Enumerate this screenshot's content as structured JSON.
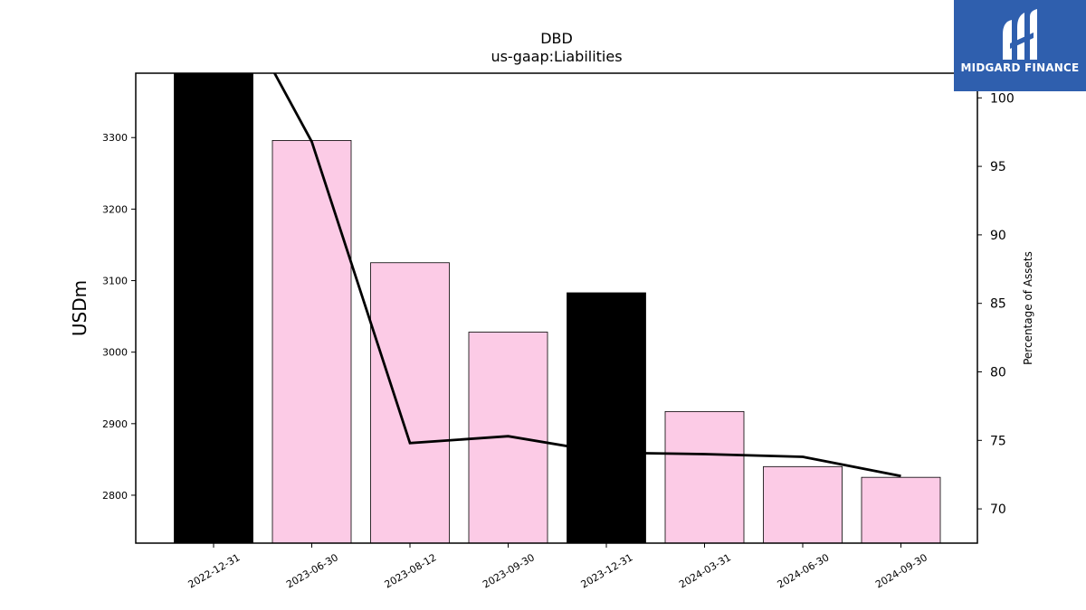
{
  "chart_data": {
    "type": "bar",
    "title": "DBD",
    "subtitle": "us-gaap:Liabilities",
    "ylabel": "USDm",
    "y2label": "Percentage of Assets",
    "categories": [
      "2022-12-31",
      "2023-06-30",
      "2023-08-12",
      "2023-09-30",
      "2023-12-31",
      "2024-03-31",
      "2024-06-30",
      "2024-09-30"
    ],
    "values": [
      3390,
      3296,
      3125,
      3028,
      3083,
      2917,
      2840,
      2825
    ],
    "bar_colors": [
      "#000000",
      "#fccbe6",
      "#fccbe6",
      "#fccbe6",
      "#000000",
      "#fccbe6",
      "#fccbe6",
      "#fccbe6"
    ],
    "ylim": [
      2733,
      3390
    ],
    "yticks": [
      2800,
      2900,
      3000,
      3100,
      3200,
      3300
    ],
    "line_series": {
      "name": "Percentage of Assets",
      "values": [
        110,
        96.8,
        74.8,
        75.3,
        74.1,
        74.0,
        73.8,
        72.4
      ]
    },
    "y2lim": [
      67.5,
      101.8
    ],
    "y2ticks": [
      70,
      75,
      80,
      85,
      90,
      95,
      100
    ],
    "grid": false
  },
  "logo": {
    "text": "MIDGARD FINANCE"
  },
  "colors": {
    "logo_background": "#2f5fae",
    "bar_highlight": "#000000",
    "bar_default": "#fccbe6",
    "line": "#000000"
  }
}
